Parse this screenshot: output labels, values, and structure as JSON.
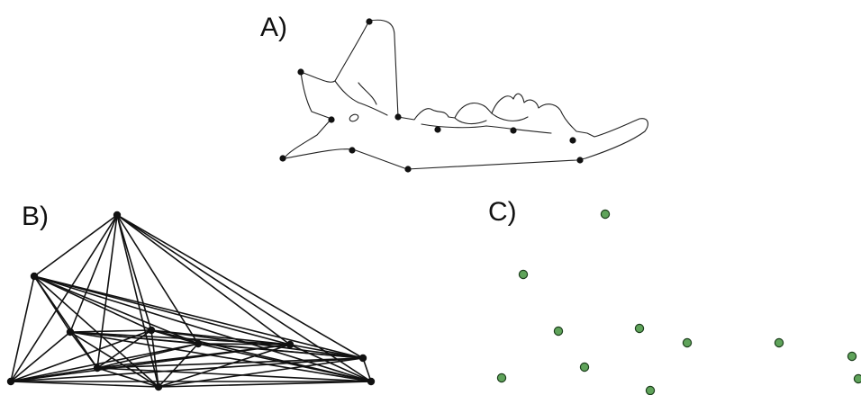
{
  "panels": {
    "a": {
      "label": "A)"
    },
    "b": {
      "label": "B)"
    },
    "c": {
      "label": "C)"
    }
  },
  "colors": {
    "ink": "#111111",
    "landmark_fill": "#5fa35a",
    "landmark_stroke": "#1b3d1b"
  }
}
